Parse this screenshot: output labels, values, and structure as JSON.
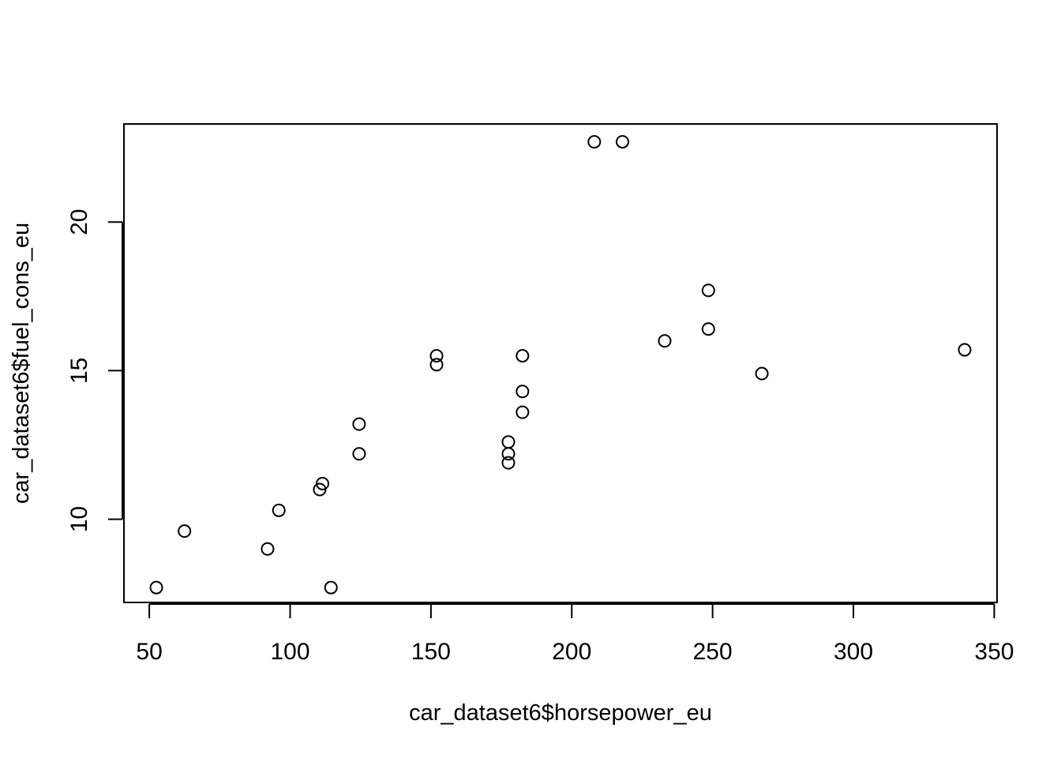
{
  "chart_data": {
    "type": "scatter",
    "title": "",
    "xlabel": "car_dataset6$horsepower_eu",
    "ylabel": "car_dataset6$fuel_cons_eu",
    "xlim": [
      41,
      351
    ],
    "ylim": [
      7.2,
      23.3
    ],
    "x_ticks": [
      50,
      100,
      150,
      200,
      250,
      300,
      350
    ],
    "y_ticks": [
      10,
      15,
      20
    ],
    "grid": false,
    "legend": "none",
    "marker": "open-circle",
    "points": [
      {
        "x": 52.5,
        "y": 7.7
      },
      {
        "x": 62.5,
        "y": 9.6
      },
      {
        "x": 92,
        "y": 9.0
      },
      {
        "x": 96,
        "y": 10.3
      },
      {
        "x": 110.5,
        "y": 11.0
      },
      {
        "x": 111.5,
        "y": 11.2
      },
      {
        "x": 114.5,
        "y": 7.7
      },
      {
        "x": 124.5,
        "y": 12.2
      },
      {
        "x": 124.5,
        "y": 13.2
      },
      {
        "x": 152,
        "y": 15.2
      },
      {
        "x": 152,
        "y": 15.5
      },
      {
        "x": 177.5,
        "y": 11.9
      },
      {
        "x": 177.5,
        "y": 12.2
      },
      {
        "x": 177.5,
        "y": 12.6
      },
      {
        "x": 182.5,
        "y": 13.6
      },
      {
        "x": 182.5,
        "y": 14.3
      },
      {
        "x": 182.5,
        "y": 15.5
      },
      {
        "x": 208,
        "y": 22.7
      },
      {
        "x": 218,
        "y": 22.7
      },
      {
        "x": 233,
        "y": 16.0
      },
      {
        "x": 248.5,
        "y": 16.4
      },
      {
        "x": 248.5,
        "y": 17.7
      },
      {
        "x": 267.5,
        "y": 14.9
      },
      {
        "x": 339.5,
        "y": 15.7
      }
    ]
  }
}
